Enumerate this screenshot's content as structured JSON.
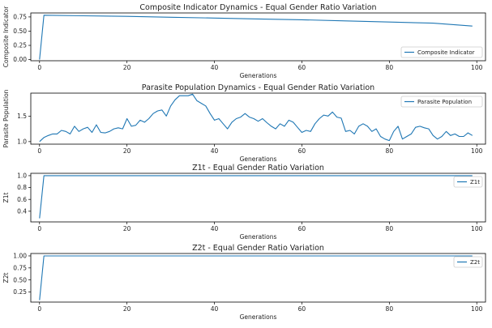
{
  "colors": {
    "line": "#1f77b4",
    "axis": "#000000",
    "legend_border": "#cccccc"
  },
  "chart_data": [
    {
      "type": "line",
      "title": "Composite Indicator Dynamics - Equal Gender Ratio Variation",
      "xlabel": "Generations",
      "ylabel": "Composite Indicator",
      "xlim": [
        -2,
        102
      ],
      "ylim": [
        -0.02,
        0.82
      ],
      "xticks": [
        0,
        20,
        40,
        60,
        80,
        100
      ],
      "yticks": [
        0.0,
        0.25,
        0.5,
        0.75
      ],
      "ytick_labels": [
        "0.00",
        "0.25",
        "0.50",
        "0.75"
      ],
      "legend": "lower-right",
      "grid": false,
      "series": [
        {
          "name": "Composite Indicator",
          "x": [
            0,
            1,
            10,
            20,
            30,
            40,
            50,
            60,
            70,
            80,
            90,
            99
          ],
          "y": [
            0.0,
            0.78,
            0.77,
            0.76,
            0.745,
            0.73,
            0.715,
            0.7,
            0.68,
            0.66,
            0.64,
            0.59
          ]
        }
      ]
    },
    {
      "type": "line",
      "title": "Parasite Population Dynamics - Equal Gender Ratio Variation",
      "xlabel": "Generations",
      "ylabel": "Parasite Population",
      "xlim": [
        -2,
        102
      ],
      "ylim": [
        0.95,
        1.95
      ],
      "xticks": [
        0,
        20,
        40,
        60,
        80,
        100
      ],
      "yticks": [
        1.0,
        1.5
      ],
      "ytick_labels": [
        "1.0",
        "1.5"
      ],
      "legend": "upper-right",
      "grid": false,
      "series": [
        {
          "name": "Parasite Population",
          "x": [
            0,
            1,
            2,
            3,
            4,
            5,
            6,
            7,
            8,
            9,
            10,
            11,
            12,
            13,
            14,
            15,
            16,
            17,
            18,
            19,
            20,
            21,
            22,
            23,
            24,
            25,
            26,
            27,
            28,
            29,
            30,
            31,
            32,
            33,
            34,
            35,
            36,
            37,
            38,
            39,
            40,
            41,
            42,
            43,
            44,
            45,
            46,
            47,
            48,
            49,
            50,
            51,
            52,
            53,
            54,
            55,
            56,
            57,
            58,
            59,
            60,
            61,
            62,
            63,
            64,
            65,
            66,
            67,
            68,
            69,
            70,
            71,
            72,
            73,
            74,
            75,
            76,
            77,
            78,
            79,
            80,
            81,
            82,
            83,
            84,
            85,
            86,
            87,
            88,
            89,
            90,
            91,
            92,
            93,
            94,
            95,
            96,
            97,
            98,
            99
          ],
          "y": [
            1.0,
            1.08,
            1.12,
            1.15,
            1.15,
            1.22,
            1.2,
            1.15,
            1.3,
            1.2,
            1.25,
            1.28,
            1.18,
            1.33,
            1.18,
            1.17,
            1.2,
            1.25,
            1.27,
            1.25,
            1.45,
            1.3,
            1.32,
            1.42,
            1.38,
            1.45,
            1.55,
            1.6,
            1.62,
            1.5,
            1.7,
            1.82,
            1.9,
            1.9,
            1.9,
            1.93,
            1.8,
            1.75,
            1.7,
            1.55,
            1.42,
            1.45,
            1.35,
            1.25,
            1.38,
            1.45,
            1.48,
            1.55,
            1.48,
            1.45,
            1.4,
            1.45,
            1.37,
            1.3,
            1.25,
            1.35,
            1.3,
            1.42,
            1.38,
            1.28,
            1.18,
            1.22,
            1.2,
            1.35,
            1.45,
            1.52,
            1.5,
            1.58,
            1.48,
            1.46,
            1.2,
            1.22,
            1.15,
            1.3,
            1.35,
            1.3,
            1.2,
            1.25,
            1.1,
            1.05,
            1.02,
            1.2,
            1.3,
            1.05,
            1.1,
            1.15,
            1.28,
            1.3,
            1.27,
            1.25,
            1.12,
            1.05,
            1.1,
            1.2,
            1.12,
            1.15,
            1.1,
            1.1,
            1.17,
            1.12
          ]
        }
      ]
    },
    {
      "type": "line",
      "title": "Z1t - Equal Gender Ratio Variation",
      "xlabel": "Generations",
      "ylabel": "Z1t",
      "xlim": [
        -2,
        102
      ],
      "ylim": [
        0.22,
        1.04
      ],
      "xticks": [
        0,
        20,
        40,
        60,
        80,
        100
      ],
      "yticks": [
        0.4,
        0.6,
        0.8,
        1.0
      ],
      "ytick_labels": [
        "0.4",
        "0.6",
        "0.8",
        "1.0"
      ],
      "legend": "upper-right",
      "grid": false,
      "series": [
        {
          "name": "Z1t",
          "x": [
            0,
            1,
            99
          ],
          "y": [
            0.28,
            1.0,
            1.0
          ]
        }
      ]
    },
    {
      "type": "line",
      "title": "Z2t - Equal Gender Ratio Variation",
      "xlabel": "Generations",
      "ylabel": "Z2t",
      "xlim": [
        -2,
        102
      ],
      "ylim": [
        0.04,
        1.05
      ],
      "xticks": [
        0,
        20,
        40,
        60,
        80,
        100
      ],
      "yticks": [
        0.25,
        0.5,
        0.75,
        1.0
      ],
      "ytick_labels": [
        "0.25",
        "0.50",
        "0.75",
        "1.00"
      ],
      "legend": "upper-right",
      "grid": false,
      "series": [
        {
          "name": "Z2t",
          "x": [
            0,
            1,
            99
          ],
          "y": [
            0.08,
            1.0,
            1.0
          ]
        }
      ]
    }
  ]
}
